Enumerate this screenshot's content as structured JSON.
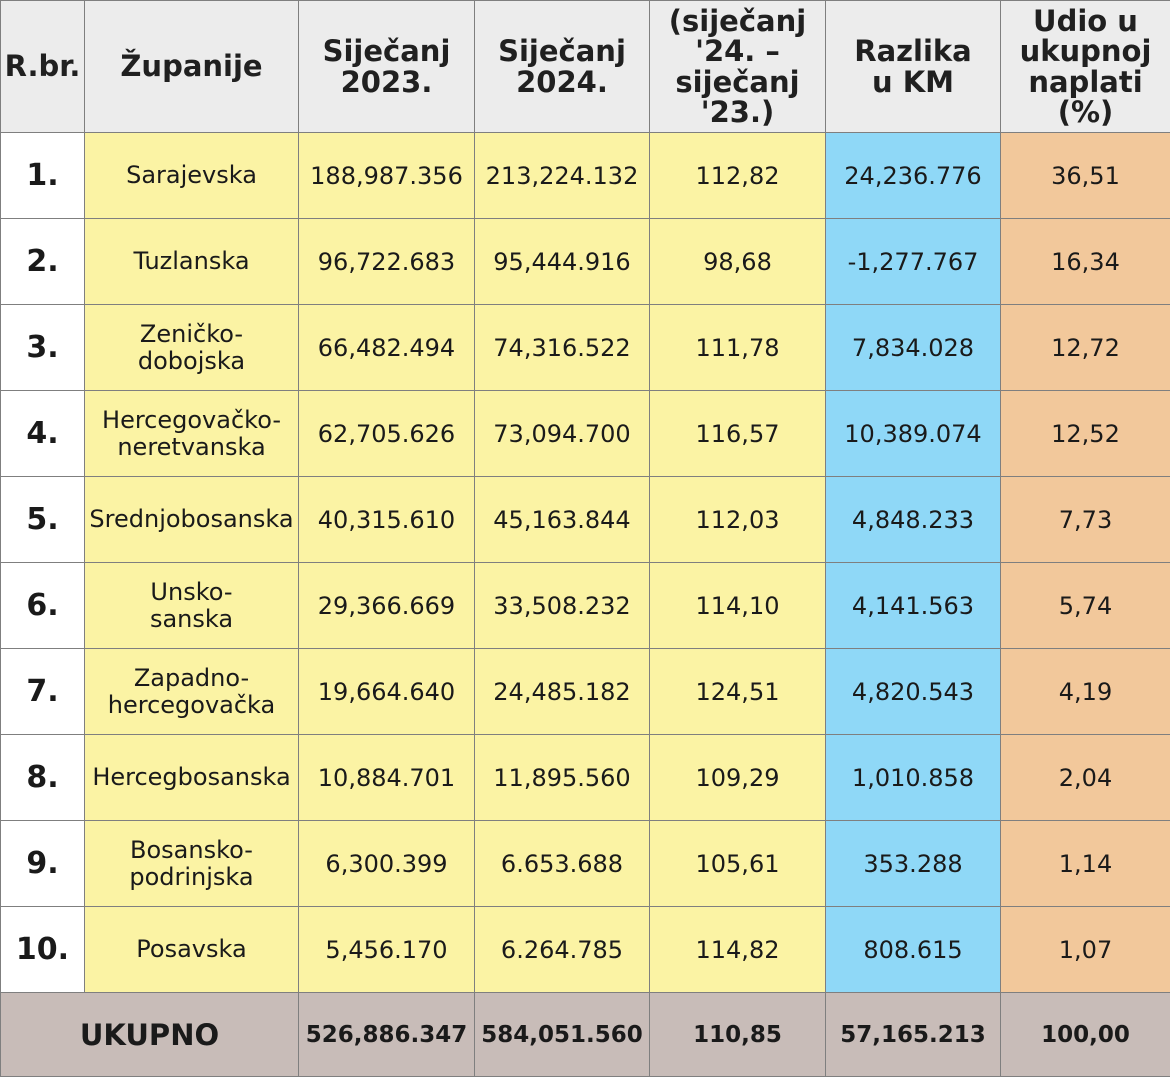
{
  "headers": {
    "rbr": "R.br.",
    "zupanije": "Županije",
    "sijecanj2023": "Siječanj\n2023.",
    "sijecanj2024": "Siječanj\n2024.",
    "index": "(siječanj\n'24. –\nsiječanj '23.)",
    "razlika": "Razlika\nu KM",
    "udio": "Udio u\nukupnoj\nnaplati (%)"
  },
  "rows": [
    {
      "rbr": "1.",
      "name": "Sarajevska",
      "y2023": "188,987.356",
      "y2024": "213,224.132",
      "index": "112,82",
      "razlika": "24,236.776",
      "udio": "36,51"
    },
    {
      "rbr": "2.",
      "name": "Tuzlanska",
      "y2023": "96,722.683",
      "y2024": "95,444.916",
      "index": "98,68",
      "razlika": "-1,277.767",
      "udio": "16,34"
    },
    {
      "rbr": "3.",
      "name": "Zeničko-\ndobojska",
      "y2023": "66,482.494",
      "y2024": "74,316.522",
      "index": "111,78",
      "razlika": "7,834.028",
      "udio": "12,72"
    },
    {
      "rbr": "4.",
      "name": "Hercegovačko-\nneretvanska",
      "y2023": "62,705.626",
      "y2024": "73,094.700",
      "index": "116,57",
      "razlika": "10,389.074",
      "udio": "12,52"
    },
    {
      "rbr": "5.",
      "name": "Srednjobosanska",
      "y2023": "40,315.610",
      "y2024": "45,163.844",
      "index": "112,03",
      "razlika": "4,848.233",
      "udio": "7,73"
    },
    {
      "rbr": "6.",
      "name": "Unsko-\nsanska",
      "y2023": "29,366.669",
      "y2024": "33,508.232",
      "index": "114,10",
      "razlika": "4,141.563",
      "udio": "5,74"
    },
    {
      "rbr": "7.",
      "name": "Zapadno-\nhercegovačka",
      "y2023": "19,664.640",
      "y2024": "24,485.182",
      "index": "124,51",
      "razlika": "4,820.543",
      "udio": "4,19"
    },
    {
      "rbr": "8.",
      "name": "Hercegbosanska",
      "y2023": "10,884.701",
      "y2024": "11,895.560",
      "index": "109,29",
      "razlika": "1,010.858",
      "udio": "2,04"
    },
    {
      "rbr": "9.",
      "name": "Bosansko-\npodrinjska",
      "y2023": "6,300.399",
      "y2024": "6.653.688",
      "index": "105,61",
      "razlika": "353.288",
      "udio": "1,14"
    },
    {
      "rbr": "10.",
      "name": "Posavska",
      "y2023": "5,456.170",
      "y2024": "6.264.785",
      "index": "114,82",
      "razlika": "808.615",
      "udio": "1,07"
    }
  ],
  "total": {
    "label": "UKUPNO",
    "y2023": "526,886.347",
    "y2024": "584,051.560",
    "index": "110,85",
    "razlika": "57,165.213",
    "udio": "100,00"
  },
  "colors": {
    "yellow": "#fbf3a4",
    "blue": "#8fd8f7",
    "orange": "#f2c89b",
    "header": "#ececec",
    "footer": "#c8bcb8"
  }
}
